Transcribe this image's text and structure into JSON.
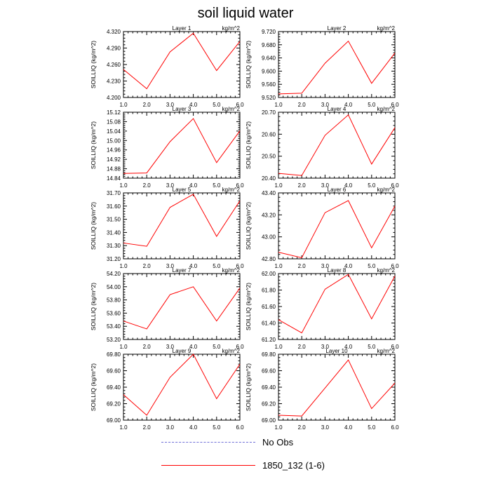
{
  "title": "soil liquid water",
  "colors": {
    "model": "#ff0000",
    "obs": "#6f6fd8",
    "axis": "#000000"
  },
  "legend": [
    {
      "label": "No Obs",
      "style": "dashed",
      "color": "#6f6fd8"
    },
    {
      "label": "1850_132 (1-6)",
      "style": "solid",
      "color": "#ff0000"
    }
  ],
  "chart_data": [
    {
      "type": "line",
      "title": "Layer 1",
      "units": "kg/m^2",
      "ylabel": "SOILLIQ  (kg/m^2)",
      "x": [
        1,
        2,
        3,
        4,
        5,
        6
      ],
      "x_ticks": [
        "1.0",
        "2.0",
        "3.0",
        "4.0",
        "5.0",
        "6.0"
      ],
      "xlim": [
        1,
        6
      ],
      "ylim": [
        4.2,
        4.32
      ],
      "y_ticks": [
        "4.200",
        "4.230",
        "4.260",
        "4.290",
        "4.320"
      ],
      "series": [
        {
          "name": "1850_132 (1-6)",
          "values": [
            4.251,
            4.216,
            4.283,
            4.317,
            4.249,
            4.302
          ]
        }
      ]
    },
    {
      "type": "line",
      "title": "Layer 2",
      "units": "kg/m^2",
      "ylabel": "SOILLIQ  (kg/m^2)",
      "x": [
        1,
        2,
        3,
        4,
        5,
        6
      ],
      "x_ticks": [
        "1.0",
        "2.0",
        "3.0",
        "4.0",
        "5.0",
        "6.0"
      ],
      "xlim": [
        1,
        6
      ],
      "ylim": [
        9.52,
        9.72
      ],
      "y_ticks": [
        "9.520",
        "9.560",
        "9.600",
        "9.640",
        "9.680",
        "9.720"
      ],
      "series": [
        {
          "name": "1850_132 (1-6)",
          "values": [
            9.531,
            9.533,
            9.624,
            9.691,
            9.563,
            9.655
          ]
        }
      ]
    },
    {
      "type": "line",
      "title": "Layer 3",
      "units": "kg/m^2",
      "ylabel": "SOILLIQ  (kg/m^2)",
      "x": [
        1,
        2,
        3,
        4,
        5,
        6
      ],
      "x_ticks": [
        "1.0",
        "2.0",
        "3.0",
        "4.0",
        "5.0",
        "6.0"
      ],
      "xlim": [
        1,
        6
      ],
      "ylim": [
        14.84,
        15.12
      ],
      "y_ticks": [
        "14.84",
        "14.88",
        "14.92",
        "14.96",
        "15.00",
        "15.04",
        "15.08",
        "15.12"
      ],
      "series": [
        {
          "name": "1850_132 (1-6)",
          "values": [
            14.86,
            14.862,
            14.995,
            15.093,
            14.906,
            15.041
          ]
        }
      ]
    },
    {
      "type": "line",
      "title": "Layer 4",
      "units": "kg/m^2",
      "ylabel": "SOILLIQ  (kg/m^2)",
      "x": [
        1,
        2,
        3,
        4,
        5,
        6
      ],
      "x_ticks": [
        "1.0",
        "2.0",
        "3.0",
        "4.0",
        "5.0",
        "6.0"
      ],
      "xlim": [
        1,
        6
      ],
      "ylim": [
        20.4,
        20.7
      ],
      "y_ticks": [
        "20.40",
        "20.50",
        "20.60",
        "20.70"
      ],
      "series": [
        {
          "name": "1850_132 (1-6)",
          "values": [
            20.422,
            20.412,
            20.595,
            20.688,
            20.464,
            20.63
          ]
        }
      ]
    },
    {
      "type": "line",
      "title": "Layer 5",
      "units": "kg/m^2",
      "ylabel": "SOILLIQ  (kg/m^2)",
      "x": [
        1,
        2,
        3,
        4,
        5,
        6
      ],
      "x_ticks": [
        "1.0",
        "2.0",
        "3.0",
        "4.0",
        "5.0",
        "6.0"
      ],
      "xlim": [
        1,
        6
      ],
      "ylim": [
        31.2,
        31.7
      ],
      "y_ticks": [
        "31.20",
        "31.30",
        "31.40",
        "31.50",
        "31.60",
        "31.70"
      ],
      "series": [
        {
          "name": "1850_132 (1-6)",
          "values": [
            31.32,
            31.295,
            31.59,
            31.69,
            31.37,
            31.64
          ]
        }
      ]
    },
    {
      "type": "line",
      "title": "Layer 6",
      "units": "kg/m^2",
      "ylabel": "SOILLIQ  (kg/m^2)",
      "x": [
        1,
        2,
        3,
        4,
        5,
        6
      ],
      "x_ticks": [
        "1.0",
        "2.0",
        "3.0",
        "4.0",
        "5.0",
        "6.0"
      ],
      "xlim": [
        1,
        6
      ],
      "ylim": [
        42.8,
        43.4
      ],
      "y_ticks": [
        "42.80",
        "43.00",
        "43.20",
        "43.40"
      ],
      "series": [
        {
          "name": "1850_132 (1-6)",
          "values": [
            42.86,
            42.81,
            43.22,
            43.33,
            42.9,
            43.28
          ]
        }
      ]
    },
    {
      "type": "line",
      "title": "Layer 7",
      "units": "kg/m^2",
      "ylabel": "SOILLIQ  (kg/m^2)",
      "x": [
        1,
        2,
        3,
        4,
        5,
        6
      ],
      "x_ticks": [
        "1.0",
        "2.0",
        "3.0",
        "4.0",
        "5.0",
        "6.0"
      ],
      "xlim": [
        1,
        6
      ],
      "ylim": [
        53.2,
        54.2
      ],
      "y_ticks": [
        "53.20",
        "53.40",
        "53.60",
        "53.80",
        "54.00",
        "54.20"
      ],
      "series": [
        {
          "name": "1850_132 (1-6)",
          "values": [
            53.48,
            53.36,
            53.88,
            54.0,
            53.48,
            53.98
          ]
        }
      ]
    },
    {
      "type": "line",
      "title": "Layer 8",
      "units": "kg/m^2",
      "ylabel": "SOILLIQ  (kg/m^2)",
      "x": [
        1,
        2,
        3,
        4,
        5,
        6
      ],
      "x_ticks": [
        "1.0",
        "2.0",
        "3.0",
        "4.0",
        "5.0",
        "6.0"
      ],
      "xlim": [
        1,
        6
      ],
      "ylim": [
        61.2,
        62.0
      ],
      "y_ticks": [
        "61.20",
        "61.40",
        "61.60",
        "61.80",
        "62.00"
      ],
      "series": [
        {
          "name": "1850_132 (1-6)",
          "values": [
            61.44,
            61.28,
            61.81,
            61.99,
            61.45,
            61.97
          ]
        }
      ]
    },
    {
      "type": "line",
      "title": "Layer 9",
      "units": "kg/m^2",
      "ylabel": "SOILLIQ  (kg/m^2)",
      "x": [
        1,
        2,
        3,
        4,
        5,
        6
      ],
      "x_ticks": [
        "1.0",
        "2.0",
        "3.0",
        "4.0",
        "5.0",
        "6.0"
      ],
      "xlim": [
        1,
        6
      ],
      "ylim": [
        69.0,
        69.8
      ],
      "y_ticks": [
        "69.00",
        "69.20",
        "69.40",
        "69.60",
        "69.80"
      ],
      "series": [
        {
          "name": "1850_132 (1-6)",
          "values": [
            69.31,
            69.06,
            69.52,
            69.8,
            69.26,
            69.68
          ]
        }
      ]
    },
    {
      "type": "line",
      "title": "Layer 10",
      "units": "kg/m^2",
      "ylabel": "SOILLIQ  (kg/m^2)",
      "x": [
        1,
        2,
        3,
        4,
        5,
        6
      ],
      "x_ticks": [
        "1.0",
        "2.0",
        "3.0",
        "4.0",
        "5.0",
        "6.0"
      ],
      "xlim": [
        1,
        6
      ],
      "ylim": [
        69.0,
        69.8
      ],
      "y_ticks": [
        "69.00",
        "69.20",
        "69.40",
        "69.60",
        "69.80"
      ],
      "series": [
        {
          "name": "1850_132 (1-6)",
          "values": [
            69.06,
            69.05,
            69.39,
            69.73,
            69.14,
            69.45
          ]
        }
      ]
    }
  ]
}
